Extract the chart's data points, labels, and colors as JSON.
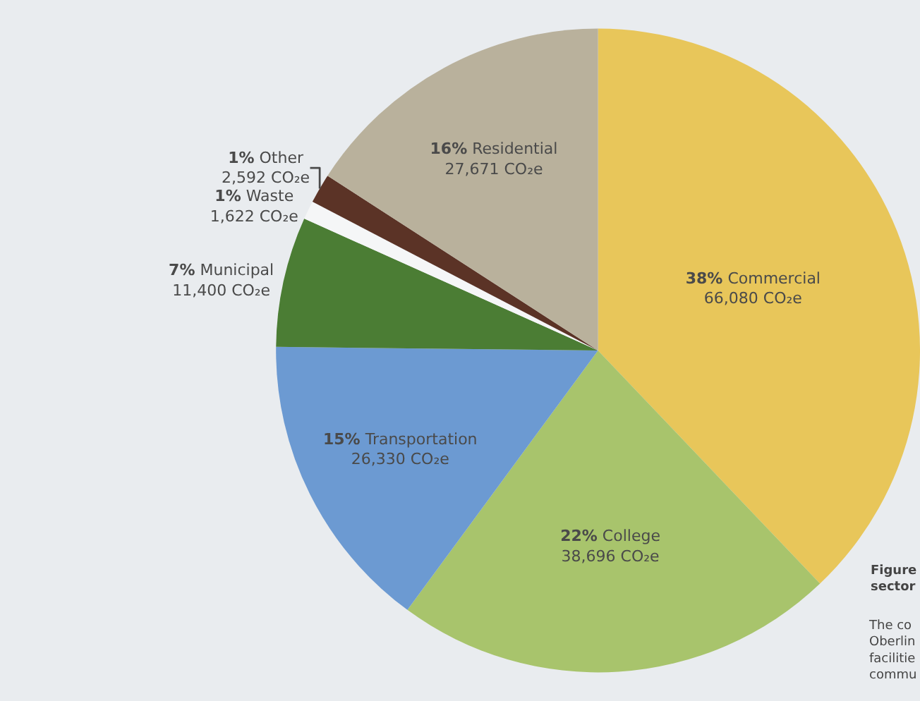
{
  "chart_data": {
    "type": "pie",
    "categories": [
      "38% Commercial",
      "22% College",
      "15% Transportation",
      "7% Municipal",
      "1% Waste",
      "1% Other",
      "16% Residential"
    ],
    "values": [
      66080,
      38696,
      26330,
      11400,
      1622,
      2592,
      27671
    ],
    "colors": [
      "#e8c65a",
      "#a8c46c",
      "#6c9ad2",
      "#4b7d34",
      "#f5f6f7",
      "#5b3326",
      "#b9b19c"
    ],
    "value_labels": [
      "66,080 CO₂e",
      "38,696 CO₂e",
      "26,330 CO₂e",
      "11,400 CO₂e",
      "1,622 CO₂e",
      "2,592 CO₂e",
      "27,671 CO₂e"
    ],
    "annotations": [
      "Figure\nsector",
      "The co\nOberlin\nfacilitie\ncommu"
    ],
    "legend": false
  }
}
